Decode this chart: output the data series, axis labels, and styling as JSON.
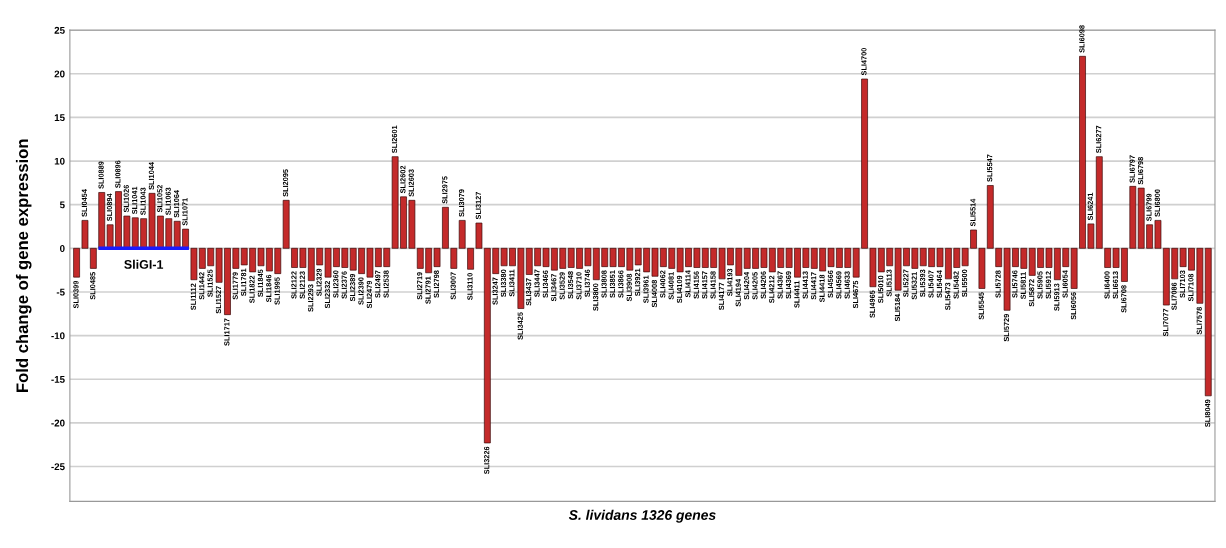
{
  "chart_data": {
    "type": "bar",
    "xlabel": "S. lividans 1326 genes",
    "ylabel": "Fold change of gene expression",
    "categories": [
      "SLI0399",
      "SLI0454",
      "SLI0485",
      "SLI0889",
      "SLI0894",
      "SLI0896",
      "SLI1026",
      "SLI1041",
      "SLI1043",
      "SLI1044",
      "SLI1052",
      "SLI1063",
      "SLI1064",
      "SLI1071",
      "SLI1112",
      "SLI1442",
      "SLI1525",
      "SLI1527",
      "SLI1717",
      "SLI1779",
      "SLI1781",
      "SLI1822",
      "SLI1845",
      "SLI1846",
      "SLI1995",
      "SLI2095",
      "SLI2122",
      "SLI2123",
      "SLI2293",
      "SLI2329",
      "SLI2332",
      "SLI2360",
      "SLI2376",
      "SLI2389",
      "SLI2390",
      "SLI2479",
      "SLI2497",
      "SLI2538",
      "SLI2601",
      "SLI2602",
      "SLI2603",
      "SLI2719",
      "SLI2791",
      "SLI2798",
      "SLI2975",
      "SLI3007",
      "SLI3079",
      "SLI3110",
      "SLI3127",
      "SLI3226",
      "SLI3247",
      "SLI3380",
      "SLI3411",
      "SLI3425",
      "SLI3437",
      "SLI3447",
      "SLI3466",
      "SLI3467",
      "SLI3529",
      "SLI3548",
      "SLI3710",
      "SLI3746",
      "SLI3800",
      "SLI3808",
      "SLI3851",
      "SLI3866",
      "SLI3908",
      "SLI3921",
      "SLI3961",
      "SLI4008",
      "SLI4062",
      "SLI4081",
      "SLI4109",
      "SLI4114",
      "SLI4156",
      "SLI4157",
      "SLI4158",
      "SLI4177",
      "SLI4193",
      "SLI4194",
      "SLI4204",
      "SLI4205",
      "SLI4206",
      "SLI4212",
      "SLI4367",
      "SLI4369",
      "SLI4411",
      "SLI4413",
      "SLI4417",
      "SLI4418",
      "SLI4566",
      "SLI4569",
      "SLI4633",
      "SLI4675",
      "SLI4700",
      "SLI4965",
      "SLI5010",
      "SLI5113",
      "SLI5184",
      "SLI5227",
      "SLI5321",
      "SLI5393",
      "SLI5407",
      "SLI5464",
      "SLI5473",
      "SLI5482",
      "SLI5500",
      "SLI5514",
      "SLI5545",
      "SLI5547",
      "SLI5728",
      "SLI5729",
      "SLI5746",
      "SLI5811",
      "SLI5872",
      "SLI5905",
      "SLI5912",
      "SLI5913",
      "SLI6054",
      "SLI6056",
      "SLI6098",
      "SLI6241",
      "SLI6277",
      "SLI6400",
      "SLI6613",
      "SLI6708",
      "SLI6797",
      "SLI6798",
      "SLI6799",
      "SLI6800",
      "SLI7077",
      "SLI7086",
      "SLI7103",
      "SLI7108",
      "SLI7578",
      "SLI8049"
    ],
    "values": [
      -3.3,
      3.2,
      -2.3,
      6.4,
      2.7,
      6.5,
      3.7,
      3.5,
      3.4,
      6.3,
      3.7,
      3.4,
      3.1,
      2.2,
      -3.6,
      -2.3,
      -2.0,
      -3.9,
      -7.6,
      -2.3,
      -1.9,
      -2.7,
      -2.0,
      -2.6,
      -2.9,
      5.5,
      -2.2,
      -2.2,
      -3.7,
      -1.9,
      -3.3,
      -2.1,
      -2.2,
      -2.5,
      -2.9,
      -3.3,
      -2.1,
      -2.1,
      10.5,
      5.9,
      5.5,
      -2.3,
      -2.8,
      -2.1,
      4.7,
      -2.3,
      3.2,
      -2.4,
      2.9,
      -22.3,
      -2.9,
      -2.0,
      -2.0,
      -6.9,
      -3.0,
      -2.0,
      -2.1,
      -2.5,
      -2.3,
      -2.2,
      -2.3,
      -2.0,
      -3.6,
      -2.1,
      -2.1,
      -2.1,
      -2.5,
      -1.9,
      -2.7,
      -3.2,
      -2.1,
      -2.3,
      -2.7,
      -2.1,
      -2.2,
      -2.2,
      -2.2,
      -3.5,
      -1.9,
      -3.1,
      -2.3,
      -2.3,
      -2.2,
      -2.7,
      -2.2,
      -2.2,
      -3.3,
      -2.2,
      -2.3,
      -2.6,
      -2.1,
      -2.2,
      -2.2,
      -3.3,
      19.4,
      -4.4,
      -2.7,
      -2.0,
      -4.8,
      -2.0,
      -2.3,
      -2.0,
      -2.1,
      -2.1,
      -3.5,
      -2.2,
      -2.0,
      2.1,
      -4.6,
      7.2,
      -2.1,
      -7.1,
      -2.1,
      -2.3,
      -3.1,
      -2.2,
      -2.2,
      -3.6,
      -2.1,
      -4.6,
      22.0,
      2.8,
      10.5,
      -2.2,
      -2.2,
      -3.8,
      7.1,
      6.9,
      2.7,
      3.2,
      -6.5,
      -3.5,
      -2.1,
      -2.5,
      -6.3,
      -16.9
    ],
    "color": "#c42a2a",
    "ylim": [
      -29,
      25
    ],
    "yticks": [
      -25,
      -20,
      -15,
      -10,
      -5,
      0,
      5,
      10,
      15,
      20,
      25
    ],
    "grid": "y",
    "annotations": [
      "SliGI-1"
    ]
  }
}
